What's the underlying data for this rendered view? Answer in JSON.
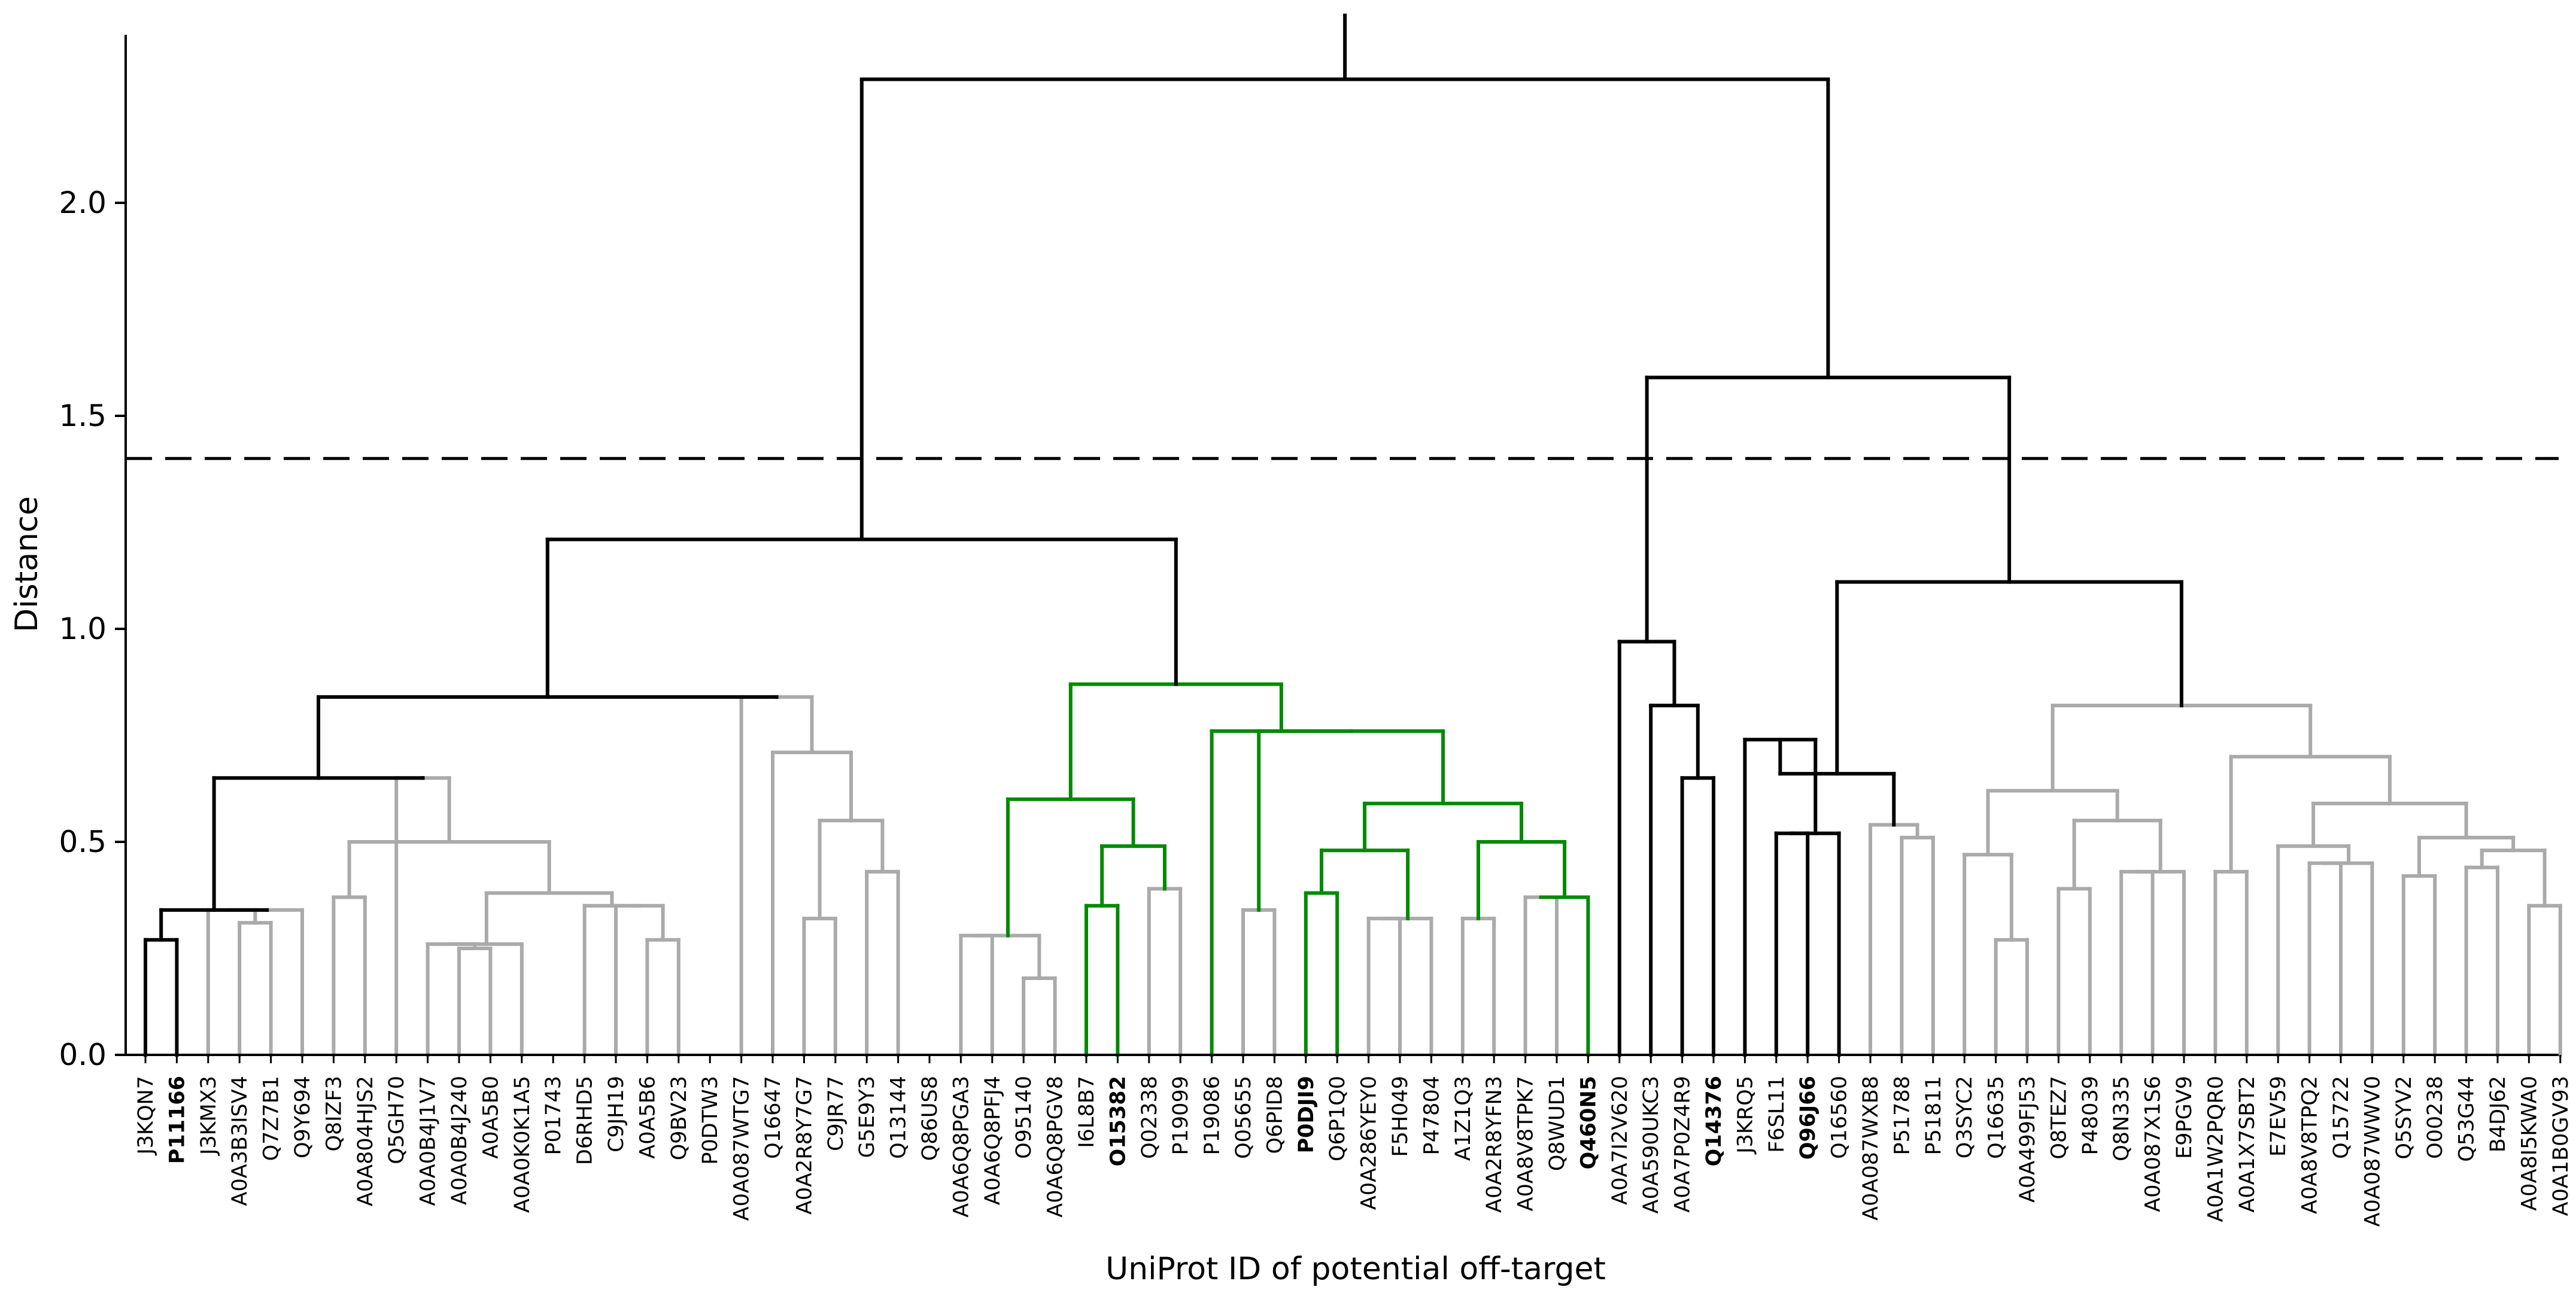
{
  "chart_data": {
    "type": "dendrogram",
    "ylabel": "Distance",
    "xlabel": "UniProt ID of potential off-target",
    "ylim": [
      0.0,
      2.4
    ],
    "yticks": [
      "0.0",
      "0.5",
      "1.0",
      "1.5",
      "2.0"
    ],
    "yticks_values": [
      0.0,
      0.5,
      1.0,
      1.5,
      2.0
    ],
    "threshold": 1.4,
    "colors": {
      "default": "#aaaaaa",
      "highlight_black": "#000000",
      "highlight_green": "#008a00",
      "axis": "#000000"
    },
    "leaves": [
      {
        "label": "J3KQN7",
        "style": "normal"
      },
      {
        "label": "P11166",
        "style": "bold-black"
      },
      {
        "label": "J3KMX3",
        "style": "normal"
      },
      {
        "label": "A0A3B3ISV4",
        "style": "normal"
      },
      {
        "label": "Q7Z7B1",
        "style": "normal"
      },
      {
        "label": "Q9Y694",
        "style": "normal"
      },
      {
        "label": "Q8IZF3",
        "style": "normal"
      },
      {
        "label": "A0A804HJS2",
        "style": "normal"
      },
      {
        "label": "Q5GH70",
        "style": "normal"
      },
      {
        "label": "A0A0B4J1V7",
        "style": "normal"
      },
      {
        "label": "A0A0B4J240",
        "style": "normal"
      },
      {
        "label": "A0A5B0",
        "style": "normal"
      },
      {
        "label": "A0A0K0K1A5",
        "style": "normal"
      },
      {
        "label": "P01743",
        "style": "normal"
      },
      {
        "label": "D6RHD5",
        "style": "normal"
      },
      {
        "label": "C9JH19",
        "style": "normal"
      },
      {
        "label": "A0A5B6",
        "style": "normal"
      },
      {
        "label": "Q9BV23",
        "style": "normal"
      },
      {
        "label": "P0DTW3",
        "style": "normal"
      },
      {
        "label": "A0A087WTG7",
        "style": "normal"
      },
      {
        "label": "Q16647",
        "style": "normal"
      },
      {
        "label": "A0A2R8Y7G7",
        "style": "normal"
      },
      {
        "label": "C9JR77",
        "style": "normal"
      },
      {
        "label": "G5E9Y3",
        "style": "normal"
      },
      {
        "label": "Q13144",
        "style": "normal"
      },
      {
        "label": "Q86US8",
        "style": "normal"
      },
      {
        "label": "A0A6Q8PGA3",
        "style": "normal"
      },
      {
        "label": "A0A6Q8PFJ4",
        "style": "normal"
      },
      {
        "label": "O95140",
        "style": "normal"
      },
      {
        "label": "A0A6Q8PGV8",
        "style": "normal"
      },
      {
        "label": "I6L8B7",
        "style": "normal"
      },
      {
        "label": "O15382",
        "style": "bold-green"
      },
      {
        "label": "Q02338",
        "style": "normal"
      },
      {
        "label": "P19099",
        "style": "normal"
      },
      {
        "label": "P19086",
        "style": "normal"
      },
      {
        "label": "Q05655",
        "style": "normal"
      },
      {
        "label": "Q6PID8",
        "style": "normal"
      },
      {
        "label": "P0DJI9",
        "style": "bold-green"
      },
      {
        "label": "Q6P1Q0",
        "style": "normal"
      },
      {
        "label": "A0A286YEY0",
        "style": "normal"
      },
      {
        "label": "F5H049",
        "style": "normal"
      },
      {
        "label": "P47804",
        "style": "normal"
      },
      {
        "label": "A1Z1Q3",
        "style": "normal"
      },
      {
        "label": "A0A2R8YFN3",
        "style": "normal"
      },
      {
        "label": "A0A8V8TPK7",
        "style": "normal"
      },
      {
        "label": "Q8WUD1",
        "style": "normal"
      },
      {
        "label": "Q460N5",
        "style": "bold-green"
      },
      {
        "label": "A0A7I2V620",
        "style": "normal"
      },
      {
        "label": "A0A590UKC3",
        "style": "normal"
      },
      {
        "label": "A0A7P0Z4R9",
        "style": "normal"
      },
      {
        "label": "Q14376",
        "style": "bold-black"
      },
      {
        "label": "J3KRQ5",
        "style": "normal"
      },
      {
        "label": "F6SL11",
        "style": "normal"
      },
      {
        "label": "Q96J66",
        "style": "bold-black"
      },
      {
        "label": "Q16560",
        "style": "normal"
      },
      {
        "label": "A0A087WXB8",
        "style": "normal"
      },
      {
        "label": "P51788",
        "style": "normal"
      },
      {
        "label": "P51811",
        "style": "normal"
      },
      {
        "label": "Q3SYC2",
        "style": "normal"
      },
      {
        "label": "Q16635",
        "style": "normal"
      },
      {
        "label": "A0A499FJ53",
        "style": "normal"
      },
      {
        "label": "Q8TEZ7",
        "style": "normal"
      },
      {
        "label": "P48039",
        "style": "normal"
      },
      {
        "label": "Q8N335",
        "style": "normal"
      },
      {
        "label": "A0A087X1S6",
        "style": "normal"
      },
      {
        "label": "E9PGV9",
        "style": "normal"
      },
      {
        "label": "A0A1W2PQR0",
        "style": "normal"
      },
      {
        "label": "A0A1X7SBT2",
        "style": "normal"
      },
      {
        "label": "E7EV59",
        "style": "normal"
      },
      {
        "label": "A0A8V8TPQ2",
        "style": "normal"
      },
      {
        "label": "Q15722",
        "style": "normal"
      },
      {
        "label": "A0A087WWV0",
        "style": "normal"
      },
      {
        "label": "Q5SYV2",
        "style": "normal"
      },
      {
        "label": "O00238",
        "style": "normal"
      },
      {
        "label": "Q53G44",
        "style": "normal"
      },
      {
        "label": "B4DJ62",
        "style": "normal"
      },
      {
        "label": "A0A8I5KWA0",
        "style": "normal"
      },
      {
        "label": "A0A1B0GV93",
        "style": "normal"
      }
    ],
    "merges": [
      {
        "id": "n01",
        "left": 0,
        "right": 1,
        "height": 0.27,
        "color": "black"
      },
      {
        "id": "n02",
        "left": 3,
        "right": 4,
        "height": 0.31,
        "color": "gray"
      },
      {
        "id": "n03",
        "left": 2,
        "right": "n02",
        "height": 0.34,
        "color": "gray"
      },
      {
        "id": "n04",
        "left": "n03",
        "right": 5,
        "height": 0.34,
        "color": "gray"
      },
      {
        "id": "n05",
        "left": "n01",
        "right": "n04",
        "height": 0.34,
        "color": "black"
      },
      {
        "id": "n06",
        "left": 6,
        "right": 7,
        "height": 0.37,
        "color": "gray"
      },
      {
        "id": "n07",
        "left": 10,
        "right": 11,
        "height": 0.25,
        "color": "gray"
      },
      {
        "id": "n08",
        "left": 9,
        "right": "n07",
        "height": 0.26,
        "color": "gray"
      },
      {
        "id": "n09",
        "left": "n08",
        "right": 12,
        "height": 0.26,
        "color": "gray"
      },
      {
        "id": "n10",
        "left": 16,
        "right": 17,
        "height": 0.27,
        "color": "gray"
      },
      {
        "id": "n11",
        "left": 15,
        "right": "n10",
        "height": 0.35,
        "color": "gray"
      },
      {
        "id": "n12",
        "left": 14,
        "right": "n11",
        "height": 0.35,
        "color": "gray"
      },
      {
        "id": "n13",
        "left": "n09",
        "right": "n12",
        "height": 0.38,
        "color": "gray"
      },
      {
        "id": "n14",
        "left": "n06",
        "right": "n13",
        "height": 0.5,
        "color": "gray"
      },
      {
        "id": "n15",
        "left": "n14",
        "right": 8,
        "height": 0.65,
        "color": "gray"
      },
      {
        "id": "n16",
        "left": "n05",
        "right": "n15",
        "height": 0.65,
        "color": "black"
      },
      {
        "id": "n17",
        "left": 21,
        "right": 22,
        "height": 0.32,
        "color": "gray"
      },
      {
        "id": "n18",
        "left": 23,
        "right": 24,
        "height": 0.43,
        "color": "gray"
      },
      {
        "id": "n19",
        "left": "n17",
        "right": "n18",
        "height": 0.55,
        "color": "gray"
      },
      {
        "id": "n20",
        "left": 20,
        "right": "n19",
        "height": 0.71,
        "color": "gray"
      },
      {
        "id": "n21",
        "left": 19,
        "right": "n20",
        "height": 0.84,
        "color": "gray"
      },
      {
        "id": "n22",
        "left": "n16",
        "right": "n21",
        "height": 0.84,
        "color": "black"
      },
      {
        "id": "n23",
        "left": 26,
        "right": 27,
        "height": 0.28,
        "color": "gray"
      },
      {
        "id": "n24",
        "left": 28,
        "right": 29,
        "height": 0.18,
        "color": "gray"
      },
      {
        "id": "n25",
        "left": "n23",
        "right": "n24",
        "height": 0.28,
        "color": "gray"
      },
      {
        "id": "n26",
        "left": 30,
        "right": 31,
        "height": 0.35,
        "color": "green"
      },
      {
        "id": "n27",
        "left": 32,
        "right": 33,
        "height": 0.39,
        "color": "gray"
      },
      {
        "id": "n28",
        "left": "n26",
        "right": "n27",
        "height": 0.49,
        "color": "green"
      },
      {
        "id": "n29",
        "left": "n25",
        "right": "n28",
        "height": 0.6,
        "color": "green"
      },
      {
        "id": "n30",
        "left": 35,
        "right": 36,
        "height": 0.34,
        "color": "gray"
      },
      {
        "id": "n31",
        "left": 37,
        "right": 38,
        "height": 0.38,
        "color": "green"
      },
      {
        "id": "n32",
        "left": 39,
        "right": 40,
        "height": 0.32,
        "color": "gray"
      },
      {
        "id": "n33",
        "left": "n32",
        "right": 41,
        "height": 0.32,
        "color": "gray"
      },
      {
        "id": "n34",
        "left": "n31",
        "right": "n33",
        "height": 0.48,
        "color": "green"
      },
      {
        "id": "n35",
        "left": 42,
        "right": 43,
        "height": 0.32,
        "color": "gray"
      },
      {
        "id": "n36",
        "left": 44,
        "right": 45,
        "height": 0.37,
        "color": "gray"
      },
      {
        "id": "n37",
        "left": "n36",
        "right": 46,
        "height": 0.37,
        "color": "green"
      },
      {
        "id": "n38",
        "left": "n35",
        "right": "n37",
        "height": 0.5,
        "color": "green"
      },
      {
        "id": "n39",
        "left": "n34",
        "right": "n38",
        "height": 0.59,
        "color": "green"
      },
      {
        "id": "n40",
        "left": "n30",
        "right": "n39",
        "height": 0.76,
        "color": "green"
      },
      {
        "id": "n41",
        "left": 34,
        "right": "n40",
        "height": 0.76,
        "color": "green"
      },
      {
        "id": "n42",
        "left": "n29",
        "right": "n41",
        "height": 0.87,
        "color": "green"
      },
      {
        "id": "n43",
        "left": "n22",
        "right": "n42",
        "height": 1.21,
        "color": "black"
      },
      {
        "id": "n44",
        "left": 49,
        "right": 50,
        "height": 0.65,
        "color": "black"
      },
      {
        "id": "n45",
        "left": 48,
        "right": "n44",
        "height": 0.82,
        "color": "black"
      },
      {
        "id": "n46",
        "left": 47,
        "right": "n45",
        "height": 0.97,
        "color": "black"
      },
      {
        "id": "n47",
        "left": 52,
        "right": 53,
        "height": 0.52,
        "color": "black"
      },
      {
        "id": "n48",
        "left": "n47",
        "right": 54,
        "height": 0.52,
        "color": "black"
      },
      {
        "id": "n49",
        "left": 51,
        "right": "n48",
        "height": 0.74,
        "color": "black"
      },
      {
        "id": "n50",
        "left": 56,
        "right": 57,
        "height": 0.51,
        "color": "gray"
      },
      {
        "id": "n51",
        "left": 55,
        "right": "n50",
        "height": 0.54,
        "color": "gray"
      },
      {
        "id": "n52",
        "left": "n49",
        "right": "n51",
        "height": 0.66,
        "color": "black"
      },
      {
        "id": "n53",
        "left": 59,
        "right": 60,
        "height": 0.27,
        "color": "gray"
      },
      {
        "id": "n54",
        "left": 58,
        "right": "n53",
        "height": 0.47,
        "color": "gray"
      },
      {
        "id": "n55",
        "left": 61,
        "right": 62,
        "height": 0.39,
        "color": "gray"
      },
      {
        "id": "n56",
        "left": 63,
        "right": 64,
        "height": 0.43,
        "color": "gray"
      },
      {
        "id": "n57",
        "left": "n56",
        "right": 65,
        "height": 0.43,
        "color": "gray"
      },
      {
        "id": "n58",
        "left": "n55",
        "right": "n57",
        "height": 0.55,
        "color": "gray"
      },
      {
        "id": "n59",
        "left": "n54",
        "right": "n58",
        "height": 0.62,
        "color": "gray"
      },
      {
        "id": "n60",
        "left": 66,
        "right": 67,
        "height": 0.43,
        "color": "gray"
      },
      {
        "id": "n61",
        "left": 69,
        "right": 70,
        "height": 0.45,
        "color": "gray"
      },
      {
        "id": "n62",
        "left": "n61",
        "right": 71,
        "height": 0.45,
        "color": "gray"
      },
      {
        "id": "n63",
        "left": 68,
        "right": "n62",
        "height": 0.49,
        "color": "gray"
      },
      {
        "id": "n64",
        "left": 72,
        "right": 73,
        "height": 0.42,
        "color": "gray"
      },
      {
        "id": "n65",
        "left": 74,
        "right": 75,
        "height": 0.44,
        "color": "gray"
      },
      {
        "id": "n66",
        "left": 76,
        "right": 77,
        "height": 0.35,
        "color": "gray"
      },
      {
        "id": "n67",
        "left": "n65",
        "right": "n66",
        "height": 0.48,
        "color": "gray"
      },
      {
        "id": "n68",
        "left": "n64",
        "right": "n67",
        "height": 0.51,
        "color": "gray"
      },
      {
        "id": "n69",
        "left": "n63",
        "right": "n68",
        "height": 0.59,
        "color": "gray"
      },
      {
        "id": "n70",
        "left": "n60",
        "right": "n69",
        "height": 0.7,
        "color": "gray"
      },
      {
        "id": "n71",
        "left": "n59",
        "right": "n70",
        "height": 0.82,
        "color": "gray"
      },
      {
        "id": "n72",
        "left": "n52",
        "right": "n71",
        "height": 1.11,
        "color": "black"
      },
      {
        "id": "n73",
        "left": "n46",
        "right": "n72",
        "height": 1.59,
        "color": "black"
      },
      {
        "id": "n74",
        "left": "n43",
        "right": "n73",
        "height": 2.29,
        "color": "black"
      }
    ],
    "root_stub_top": 2.44
  }
}
